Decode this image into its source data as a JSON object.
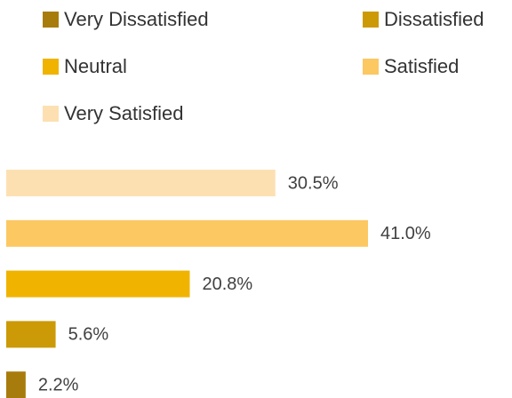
{
  "chart_data": {
    "type": "bar",
    "orientation": "horizontal",
    "categories": [
      "Very Dissatisfied",
      "Dissatisfied",
      "Neutral",
      "Satisfied",
      "Very Satisfied"
    ],
    "values": [
      2.2,
      5.6,
      20.8,
      41.0,
      30.5
    ],
    "value_labels": [
      "2.2%",
      "5.6%",
      "20.8%",
      "41.0%",
      "30.5%"
    ],
    "colors": [
      "#a87c0c",
      "#cc9a06",
      "#f0b400",
      "#fcc862",
      "#fde0b2"
    ],
    "legend": "top"
  }
}
